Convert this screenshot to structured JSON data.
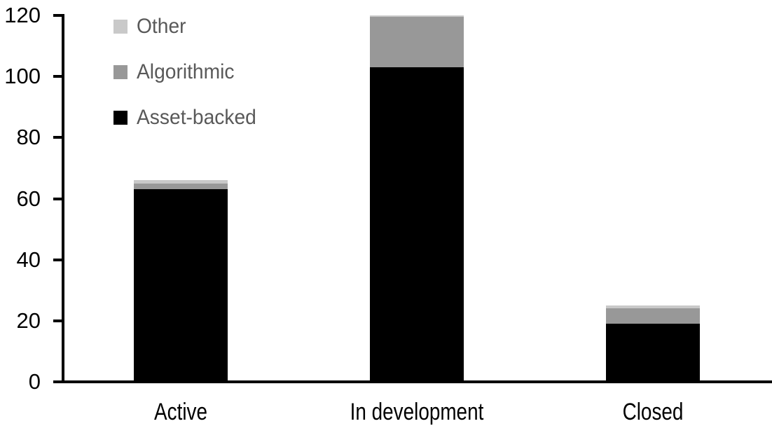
{
  "chart_data": {
    "type": "bar",
    "stacked": true,
    "title": "",
    "xlabel": "",
    "ylabel": "",
    "categories": [
      "Active",
      "In development",
      "Closed"
    ],
    "series": [
      {
        "name": "Asset-backed",
        "color": "#000000",
        "values": [
          63,
          103,
          19
        ]
      },
      {
        "name": "Algorithmic",
        "color": "#989898",
        "values": [
          2,
          17,
          5
        ]
      },
      {
        "name": "Other",
        "color": "#c9c9c9",
        "values": [
          1,
          0,
          1
        ]
      }
    ],
    "totals": [
      66,
      120,
      25
    ],
    "ylim": [
      0,
      120
    ],
    "yticks": [
      0,
      20,
      40,
      60,
      80,
      100,
      120
    ],
    "grid": false,
    "legend_position": "top-left-inside",
    "legend_order": [
      "Other",
      "Algorithmic",
      "Asset-backed"
    ]
  },
  "colors": {
    "axis": "#000000",
    "tick_label_text": "#000000",
    "x_label_text": "#000000",
    "legend_text": "#595959",
    "background": "#ffffff"
  }
}
